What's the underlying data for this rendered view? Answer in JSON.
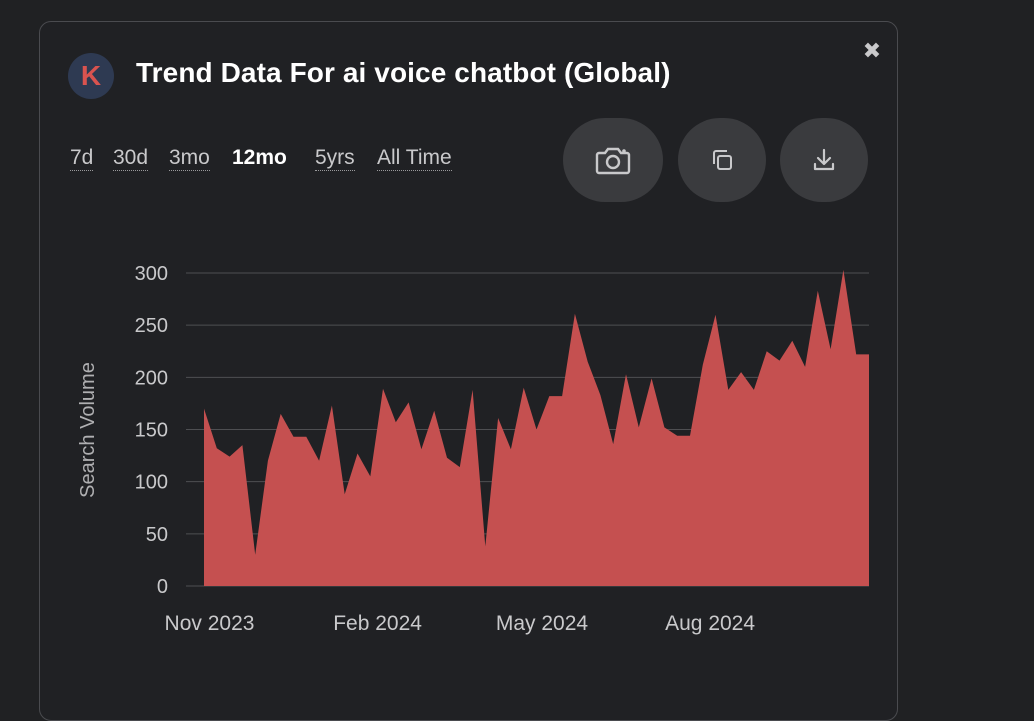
{
  "header": {
    "logo_letter": "K",
    "title": "Trend Data For ai voice chatbot (Global)",
    "close_icon": "✖"
  },
  "ranges": [
    {
      "label": "7d",
      "active": false
    },
    {
      "label": "30d",
      "active": false
    },
    {
      "label": "3mo",
      "active": false
    },
    {
      "label": "12mo",
      "active": true
    },
    {
      "label": "5yrs",
      "active": false
    },
    {
      "label": "All Time",
      "active": false
    }
  ],
  "actions": [
    {
      "name": "camera-icon"
    },
    {
      "name": "copy-icon"
    },
    {
      "name": "download-icon"
    }
  ],
  "colors": {
    "area": "#c55050",
    "grid": "#4e4f52",
    "background": "#202124"
  },
  "chart_data": {
    "type": "area",
    "ylabel": "Search Volume",
    "ylim": [
      0,
      300
    ],
    "yticks": [
      0,
      50,
      100,
      150,
      200,
      250,
      300
    ],
    "x_tick_labels": [
      "Nov 2023",
      "Feb 2024",
      "May 2024",
      "Aug 2024"
    ],
    "x": [
      "2023-10-29",
      "2023-11-05",
      "2023-11-12",
      "2023-11-19",
      "2023-11-26",
      "2023-12-03",
      "2023-12-10",
      "2023-12-17",
      "2023-12-24",
      "2023-12-31",
      "2024-01-07",
      "2024-01-14",
      "2024-01-21",
      "2024-01-28",
      "2024-02-04",
      "2024-02-11",
      "2024-02-18",
      "2024-02-25",
      "2024-03-03",
      "2024-03-10",
      "2024-03-17",
      "2024-03-24",
      "2024-03-31",
      "2024-04-07",
      "2024-04-14",
      "2024-04-21",
      "2024-04-28",
      "2024-05-05",
      "2024-05-12",
      "2024-05-19",
      "2024-05-26",
      "2024-06-02",
      "2024-06-09",
      "2024-06-16",
      "2024-06-23",
      "2024-06-30",
      "2024-07-07",
      "2024-07-14",
      "2024-07-21",
      "2024-07-28",
      "2024-08-04",
      "2024-08-11",
      "2024-08-18",
      "2024-08-25",
      "2024-09-01",
      "2024-09-08",
      "2024-09-15",
      "2024-09-22",
      "2024-09-29",
      "2024-10-06",
      "2024-10-13",
      "2024-10-20",
      "2024-10-27"
    ],
    "values": [
      170,
      132,
      124,
      135,
      30,
      120,
      165,
      143,
      143,
      120,
      173,
      88,
      127,
      105,
      189,
      157,
      176,
      131,
      168,
      123,
      114,
      188,
      38,
      161,
      131,
      190,
      150,
      182,
      182,
      261,
      215,
      183,
      136,
      203,
      152,
      199,
      152,
      144,
      144,
      212,
      260,
      188,
      205,
      188,
      225,
      216,
      235,
      210,
      283,
      227,
      303,
      222,
      222
    ]
  }
}
